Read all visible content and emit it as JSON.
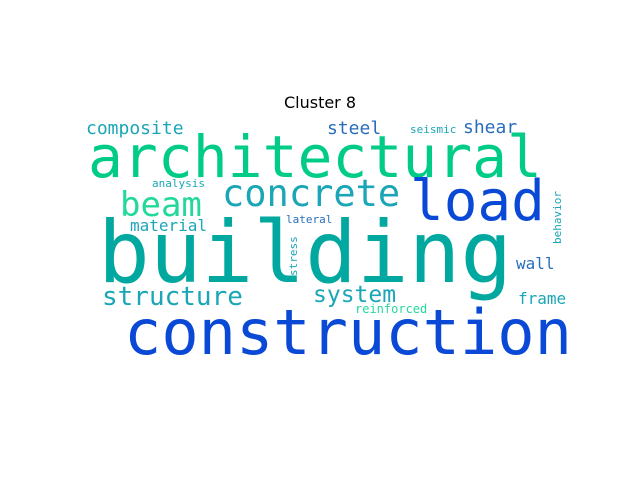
{
  "title": "Cluster 8",
  "palette": {
    "blue": "#0a48d6",
    "teal": "#00a8a0",
    "green": "#00cc88",
    "cyan": "#1aa6b7",
    "mint": "#23d99a",
    "slate": "#2a6ebb"
  },
  "words": {
    "building": "building",
    "construction": "construction",
    "architectural": "architectural",
    "load": "load",
    "concrete": "concrete",
    "beam": "beam",
    "structure": "structure",
    "system": "system",
    "composite": "composite",
    "steel": "steel",
    "shear": "shear",
    "seismic": "seismic",
    "material": "material",
    "analysis": "analysis",
    "lateral": "lateral",
    "stress": "stress",
    "wall": "wall",
    "frame": "frame",
    "reinforced": "reinforced",
    "behavior": "behavior"
  }
}
